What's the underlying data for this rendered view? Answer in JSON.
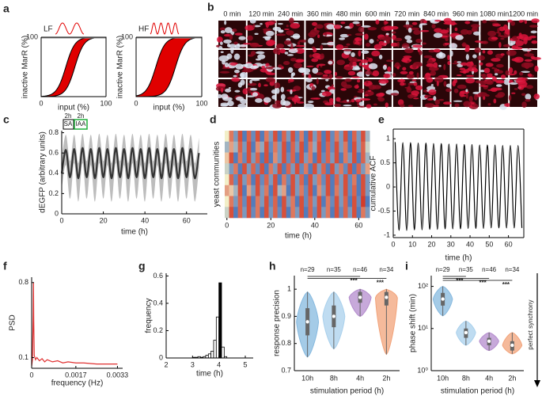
{
  "chart_data": [
    {
      "type": "sigmoid",
      "panel": "a",
      "label": "LF",
      "xlabel": "input (%)",
      "ylabel": "inactive MarR (%)",
      "xlim": [
        0,
        100
      ],
      "ylim": [
        0,
        100
      ],
      "xticks": [
        0,
        100
      ],
      "yticks": [
        100
      ],
      "color": "#e00000"
    },
    {
      "type": "sigmoid",
      "label": "HF",
      "xlabel": "input (%)",
      "ylabel": "inactive MarR (%)",
      "xlim": [
        0,
        100
      ],
      "ylim": [
        0,
        100
      ],
      "xticks": [
        0,
        100
      ],
      "yticks": [
        100
      ],
      "color": "#e00000"
    },
    {
      "type": "image-grid",
      "panel": "b",
      "columns": [
        "0 min",
        "120 min",
        "240 min",
        "360 min",
        "480 min",
        "600 min",
        "720 min",
        "840 min",
        "960 min",
        "1080 min",
        "1200 min"
      ]
    },
    {
      "type": "band-line",
      "panel": "c",
      "xlabel": "time (h)",
      "ylabel": "dEGFP (arbitrary units)",
      "annotations": [
        "2h",
        "2h",
        "SA",
        "IAA"
      ],
      "x": [
        0,
        2,
        4,
        6,
        8,
        10,
        12,
        14,
        16,
        18,
        20,
        22,
        24,
        26,
        28,
        30,
        32,
        34,
        36,
        38,
        40,
        42,
        44,
        46,
        48,
        50,
        52,
        54,
        56,
        58,
        60,
        62,
        64,
        66
      ],
      "values": [
        0.4,
        0.63,
        0.36,
        0.64,
        0.35,
        0.65,
        0.36,
        0.64,
        0.35,
        0.65,
        0.36,
        0.64,
        0.35,
        0.65,
        0.36,
        0.64,
        0.35,
        0.65,
        0.36,
        0.64,
        0.35,
        0.65,
        0.36,
        0.64,
        0.35,
        0.65,
        0.36,
        0.64,
        0.35,
        0.65,
        0.36,
        0.64,
        0.35,
        0.6
      ],
      "upper": [
        0.55,
        0.78,
        0.52,
        0.78,
        0.5,
        0.79,
        0.52,
        0.78,
        0.5,
        0.79,
        0.52,
        0.78,
        0.5,
        0.79,
        0.52,
        0.78,
        0.5,
        0.79,
        0.52,
        0.78,
        0.5,
        0.79,
        0.52,
        0.78,
        0.5,
        0.79,
        0.52,
        0.78,
        0.5,
        0.79,
        0.52,
        0.78,
        0.5,
        0.75
      ],
      "lower": [
        0.25,
        0.48,
        0.15,
        0.5,
        0.12,
        0.5,
        0.15,
        0.48,
        0.12,
        0.5,
        0.15,
        0.48,
        0.12,
        0.5,
        0.15,
        0.48,
        0.12,
        0.5,
        0.15,
        0.48,
        0.12,
        0.5,
        0.15,
        0.48,
        0.12,
        0.5,
        0.15,
        0.48,
        0.12,
        0.5,
        0.15,
        0.48,
        0.12,
        0.45
      ],
      "color": "#333333",
      "band_color": "#bdbdbd",
      "xlim": [
        0,
        70
      ],
      "ylim": [
        0,
        0.82
      ],
      "xticks": [
        0,
        20,
        40,
        60
      ],
      "yticks": [
        0,
        0.2,
        0.4,
        0.6,
        0.8
      ]
    },
    {
      "type": "heatmap",
      "panel": "d",
      "xlabel": "time (h)",
      "ylabel": "yeast communities",
      "colormap": [
        "#2b5fb8",
        "#f2efc8",
        "#d02818"
      ],
      "xlim": [
        -1,
        66
      ],
      "xticks": [
        0,
        20,
        40,
        60
      ],
      "x": [
        0,
        2,
        4,
        6,
        8,
        10,
        12,
        14,
        16,
        18,
        20,
        22,
        24,
        26,
        28,
        30,
        32,
        34,
        36,
        38,
        40,
        42,
        44,
        46,
        48,
        50,
        52,
        54,
        56,
        58,
        60,
        62,
        64
      ],
      "z": [
        [
          0.5,
          0.8,
          0.2,
          0.9,
          0.1,
          0.85,
          0.15,
          0.9,
          0.1,
          0.8,
          0.2,
          0.9,
          0.1,
          0.85,
          0.2,
          0.9,
          0.15,
          0.8,
          0.1,
          0.9,
          0.2,
          0.85,
          0.1,
          0.9,
          0.15,
          0.8,
          0.2,
          0.9,
          0.1,
          0.85,
          0.2,
          0.9,
          0.3
        ],
        [
          0.3,
          0.7,
          0.3,
          0.85,
          0.2,
          0.9,
          0.1,
          0.75,
          0.25,
          0.9,
          0.15,
          0.8,
          0.2,
          0.9,
          0.1,
          0.85,
          0.2,
          0.9,
          0.1,
          0.8,
          0.25,
          0.9,
          0.1,
          0.85,
          0.15,
          0.9,
          0.2,
          0.8,
          0.1,
          0.9,
          0.2,
          0.85,
          0.4
        ],
        [
          0.6,
          0.9,
          0.1,
          0.8,
          0.15,
          0.9,
          0.2,
          0.85,
          0.1,
          0.9,
          0.1,
          0.75,
          0.2,
          0.9,
          0.15,
          0.85,
          0.1,
          0.9,
          0.2,
          0.8,
          0.1,
          0.9,
          0.15,
          0.85,
          0.2,
          0.9,
          0.1,
          0.8,
          0.2,
          0.9,
          0.1,
          0.85,
          0.3
        ],
        [
          0.4,
          0.2,
          0.8,
          0.1,
          0.9,
          0.2,
          0.85,
          0.15,
          0.9,
          0.1,
          0.8,
          0.2,
          0.9,
          0.1,
          0.85,
          0.2,
          0.9,
          0.15,
          0.8,
          0.1,
          0.9,
          0.2,
          0.85,
          0.1,
          0.9,
          0.2,
          0.8,
          0.15,
          0.9,
          0.1,
          0.85,
          0.2,
          0.7
        ],
        [
          0.5,
          0.85,
          0.15,
          0.9,
          0.2,
          0.8,
          0.1,
          0.9,
          0.15,
          0.85,
          0.2,
          0.9,
          0.1,
          0.8,
          0.15,
          0.9,
          0.2,
          0.85,
          0.1,
          0.9,
          0.2,
          0.8,
          0.15,
          0.9,
          0.1,
          0.85,
          0.2,
          0.9,
          0.15,
          0.8,
          0.1,
          0.9,
          0.2
        ],
        [
          0.7,
          0.6,
          0.3,
          0.9,
          0.1,
          0.7,
          0.2,
          0.9,
          0.2,
          0.8,
          0.1,
          0.9,
          0.3,
          0.7,
          0.1,
          0.9,
          0.2,
          0.8,
          0.15,
          0.9,
          0.1,
          0.75,
          0.2,
          0.9,
          0.1,
          0.8,
          0.2,
          0.9,
          0.15,
          0.85,
          0.1,
          0.9,
          0.2
        ],
        [
          0.5,
          0.8,
          0.2,
          0.85,
          0.15,
          0.9,
          0.1,
          0.8,
          0.2,
          0.9,
          0.15,
          0.85,
          0.1,
          0.9,
          0.2,
          0.8,
          0.1,
          0.9,
          0.15,
          0.85,
          0.2,
          0.9,
          0.1,
          0.8,
          0.15,
          0.9,
          0.2,
          0.85,
          0.1,
          0.9,
          0.15,
          0.95,
          0.1
        ],
        [
          0.4,
          0.9,
          0.1,
          0.85,
          0.2,
          0.9,
          0.15,
          0.8,
          0.1,
          0.9,
          0.2,
          0.85,
          0.15,
          0.9,
          0.1,
          0.8,
          0.2,
          0.9,
          0.1,
          0.85,
          0.15,
          0.9,
          0.2,
          0.8,
          0.1,
          0.9,
          0.15,
          0.85,
          0.2,
          0.9,
          0.1,
          0.8,
          0.2
        ]
      ]
    },
    {
      "type": "line",
      "panel": "e",
      "xlabel": "time (h)",
      "ylabel": "cumulative ACF",
      "color": "#000000",
      "x": [
        1,
        3,
        5,
        7,
        9,
        11,
        13,
        15,
        17,
        19,
        21,
        23,
        25,
        27,
        29,
        31,
        33,
        35,
        37,
        39,
        41,
        43,
        45,
        47,
        49,
        51,
        53,
        55,
        57,
        59,
        61,
        63,
        65,
        67
      ],
      "values": [
        0.93,
        -0.9,
        0.92,
        -0.9,
        0.92,
        -0.89,
        0.91,
        -0.89,
        0.91,
        -0.88,
        0.9,
        -0.88,
        0.9,
        -0.87,
        0.89,
        -0.87,
        0.89,
        -0.87,
        0.88,
        -0.86,
        0.88,
        -0.86,
        0.87,
        -0.86,
        0.87,
        -0.85,
        0.87,
        -0.85,
        0.86,
        -0.85,
        0.86,
        -0.85,
        0.86,
        -0.85
      ],
      "xlim": [
        0,
        68
      ],
      "ylim": [
        -1.05,
        1.2
      ],
      "xticks": [
        0,
        10,
        20,
        30,
        40,
        50,
        60
      ],
      "yticks": [
        -1,
        -0.5,
        0,
        0.5,
        1
      ]
    },
    {
      "type": "line",
      "panel": "f",
      "xlabel": "frequency (Hz)",
      "ylabel": "PSD",
      "color": "#e03030",
      "x": [
        0,
        3e-05,
        6e-05,
        7e-05,
        8e-05,
        0.0001,
        0.00015,
        0.0002,
        0.0003,
        0.0004,
        0.0005,
        0.0006,
        0.0008,
        0.001,
        0.0012,
        0.0014,
        0.0017,
        0.002,
        0.0025,
        0.003,
        0.0033
      ],
      "values": [
        0.02,
        0.08,
        0.5,
        0.8,
        0.45,
        0.12,
        0.08,
        0.1,
        0.07,
        0.09,
        0.06,
        0.08,
        0.06,
        0.07,
        0.05,
        0.06,
        0.05,
        0.05,
        0.04,
        0.04,
        0.04
      ],
      "xlim": [
        0,
        0.0035
      ],
      "ylim": [
        0,
        0.85
      ],
      "xticks": [
        0,
        0.0017,
        0.0033
      ],
      "yticks": [
        0.1,
        0.8
      ]
    },
    {
      "type": "histogram",
      "panel": "g",
      "xlabel": "time (h)",
      "ylabel": "frequency",
      "bins": [
        3.0,
        3.1,
        3.2,
        3.3,
        3.4,
        3.5,
        3.6,
        3.7,
        3.8,
        3.9,
        4.0,
        4.1,
        4.2,
        4.3
      ],
      "values": [
        0.005,
        0.005,
        0.01,
        0.005,
        0.01,
        0.02,
        0.03,
        0.05,
        0.13,
        0.3,
        0.55,
        0.08,
        0.01
      ],
      "colors": [
        "#ffffff",
        "#ffffff",
        "#ffffff",
        "#ffffff",
        "#ffffff",
        "#ffffff",
        "#ffffff",
        "#ffffff",
        "#ffffff",
        "#ffffff",
        "#000000",
        "#ffffff",
        "#ffffff"
      ],
      "xlim": [
        2,
        5.3
      ],
      "ylim": [
        0,
        0.62
      ],
      "xticks": [
        2,
        3,
        4,
        5
      ],
      "yticks": [
        0,
        0.2,
        0.4,
        0.6
      ]
    },
    {
      "type": "violin",
      "panel": "h",
      "xlabel": "stimulation period (h)",
      "ylabel": "response precision",
      "categories": [
        "10h",
        "8h",
        "4h",
        "2h"
      ],
      "n_labels": [
        "n=29",
        "n=35",
        "n=46",
        "n=34"
      ],
      "significance": [
        null,
        null,
        "***",
        "***"
      ],
      "colors": [
        "#86b9df",
        "#a9d0ec",
        "#b48ccd",
        "#f2a37a"
      ],
      "min": [
        0.75,
        0.78,
        0.9,
        0.76
      ],
      "max": [
        0.99,
        0.99,
        1.0,
        1.0
      ],
      "q1": [
        0.83,
        0.86,
        0.95,
        0.94
      ],
      "q3": [
        0.93,
        0.94,
        0.99,
        0.99
      ],
      "median": [
        0.88,
        0.9,
        0.97,
        0.97
      ],
      "ylim": [
        0.7,
        1.05
      ],
      "yticks": [
        0.7,
        0.8,
        0.9,
        1
      ]
    },
    {
      "type": "violin",
      "panel": "i",
      "xlabel": "stimulation period (h)",
      "ylabel": "phase shift (min)",
      "log": true,
      "side_label": "perfect synchrony",
      "categories": [
        "10h",
        "8h",
        "4h",
        "2h"
      ],
      "n_labels": [
        "n=29",
        "n=35",
        "n=46",
        "n=34"
      ],
      "significance": [
        null,
        "***",
        "***",
        "***"
      ],
      "colors": [
        "#86b9df",
        "#a9d0ec",
        "#b48ccd",
        "#f2a37a"
      ],
      "min": [
        20,
        4,
        3,
        2.5
      ],
      "max": [
        100,
        15,
        8,
        8
      ],
      "q1": [
        35,
        6,
        4,
        3
      ],
      "q3": [
        70,
        10,
        6,
        5
      ],
      "median": [
        50,
        8,
        5,
        4
      ],
      "ylim": [
        1,
        180
      ],
      "yticks": [
        {
          "value": 1,
          "label": "10⁰"
        },
        {
          "value": 10,
          "label": "10¹"
        },
        {
          "value": 100,
          "label": "10²"
        }
      ]
    }
  ]
}
